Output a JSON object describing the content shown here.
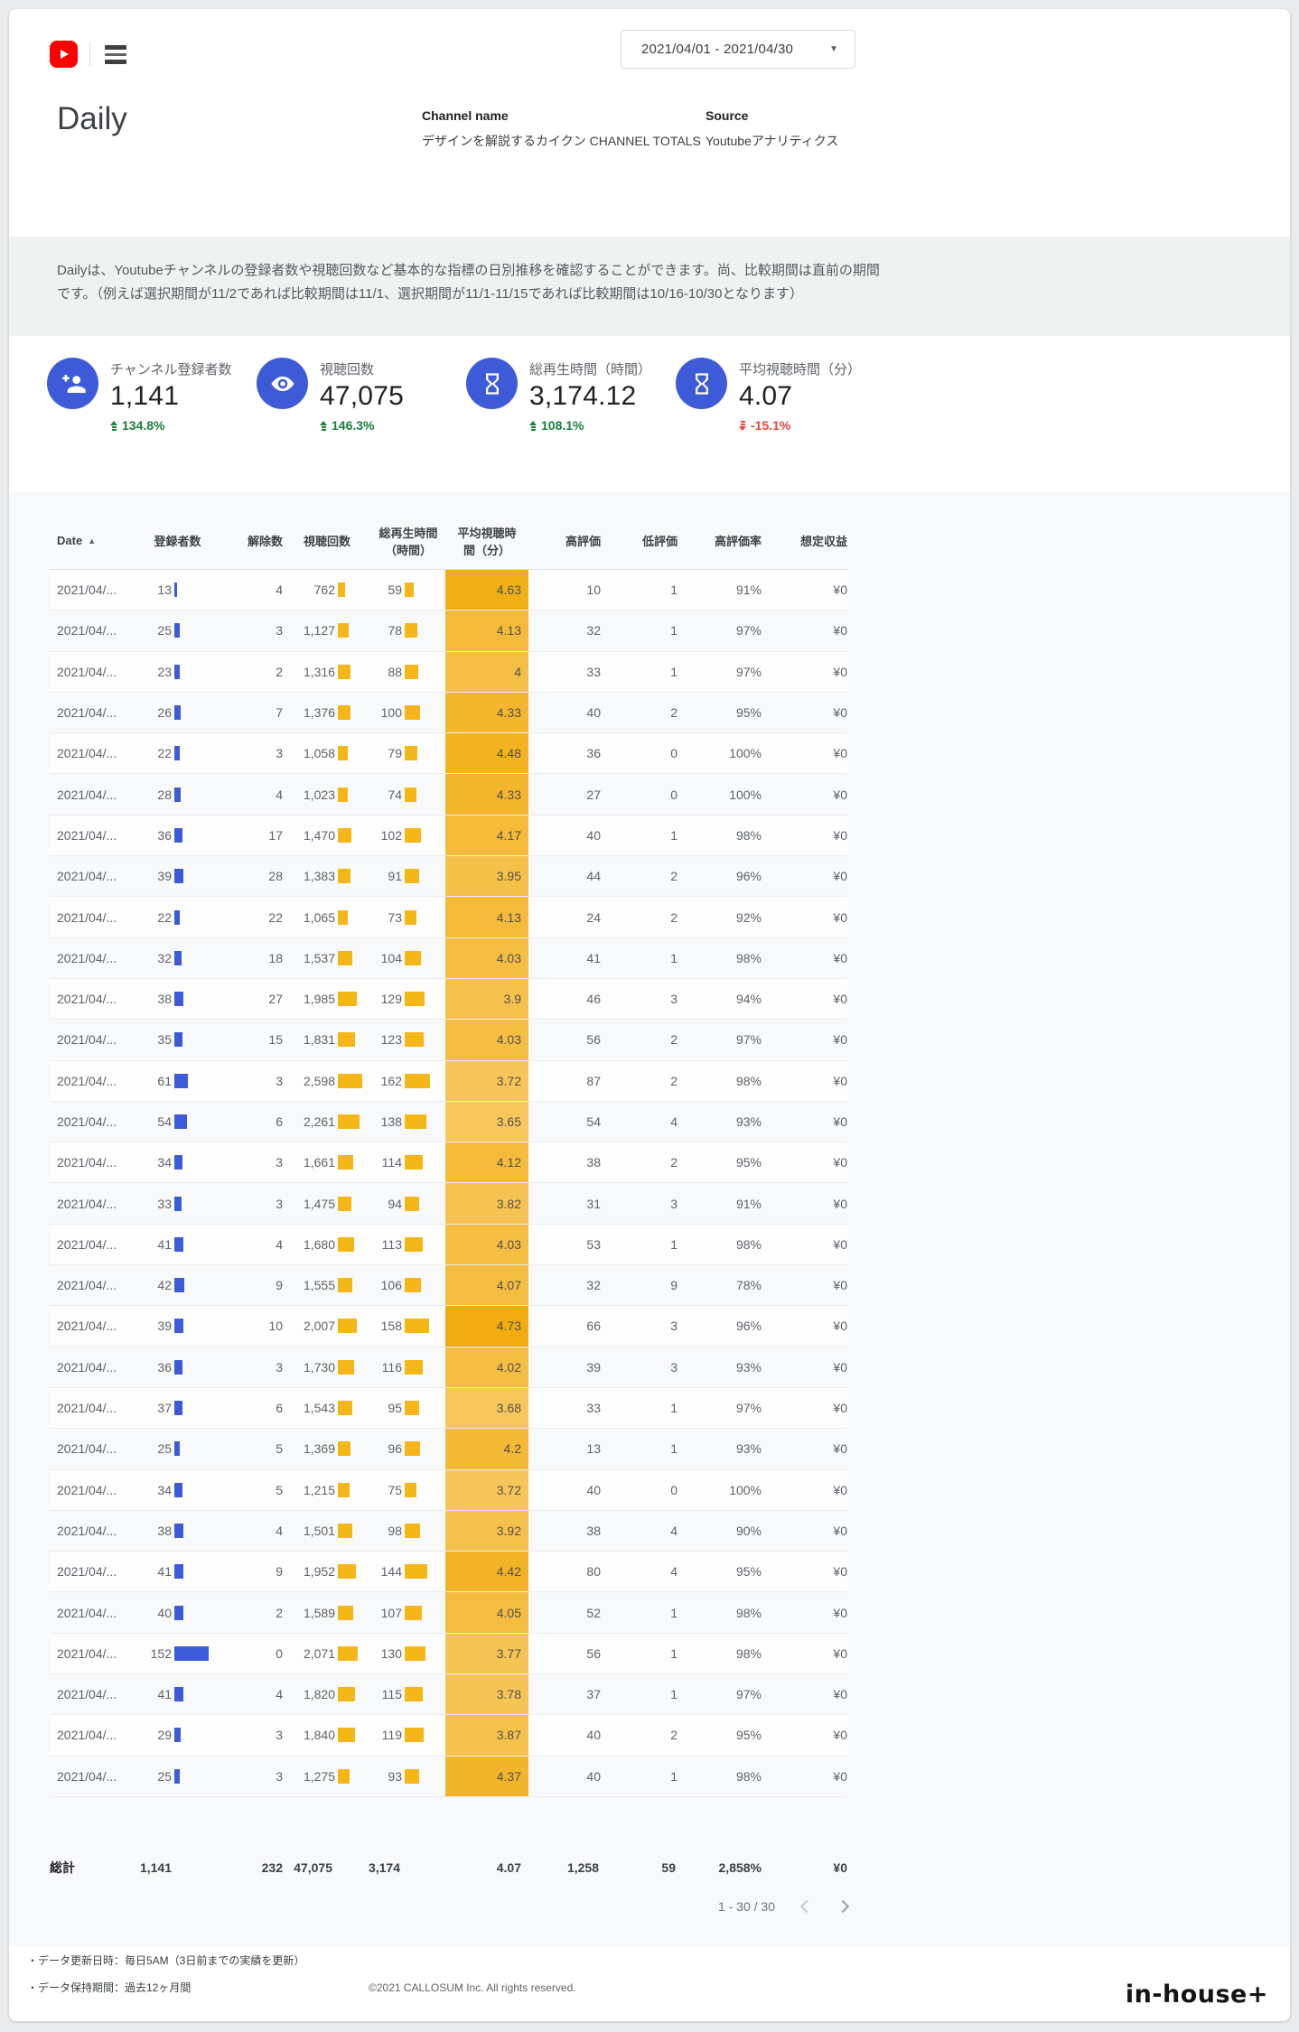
{
  "header": {
    "title": "Daily",
    "date_range": "2021/04/01 - 2021/04/30",
    "channel_label": "Channel name",
    "channel_value": "デザインを解説するカイクン CHANNEL TOTALS",
    "source_label": "Source",
    "source_value": "Youtubeアナリティクス"
  },
  "description": "Dailyは、Youtubeチャンネルの登録者数や視聴回数など基本的な指標の日別推移を確認することができます。尚、比較期間は直前の期間です。（例えば選択期間が11/2であれば比較期間は11/1、選択期間が11/1-11/15であれば比較期間は10/16-10/30となります）",
  "kpis": [
    {
      "icon": "person-add-icon",
      "label": "チャンネル登録者数",
      "value": "1,141",
      "delta": "134.8%",
      "direction": "up"
    },
    {
      "icon": "eye-icon",
      "label": "視聴回数",
      "value": "47,075",
      "delta": "146.3%",
      "direction": "up"
    },
    {
      "icon": "hourglass-icon",
      "label": "総再生時間（時間）",
      "value": "3,174.12",
      "delta": "108.1%",
      "direction": "up"
    },
    {
      "icon": "hourglass-icon",
      "label": "平均視聴時間（分）",
      "value": "4.07",
      "delta": "-15.1%",
      "direction": "down"
    }
  ],
  "colors": {
    "accent_blue": "#3D5BD9",
    "bar_yellow": "#F5B718",
    "heat_low": "#F7C75E",
    "heat_high": "#F0AC10",
    "delta_up": "#188038",
    "delta_down": "#E8463C",
    "youtube_red": "#FF0000"
  },
  "table": {
    "columns": [
      "Date",
      "登録者数",
      "解除数",
      "視聴回数",
      "総再生時間（時間）",
      "平均視聴時間（分）",
      "高評価",
      "低評価",
      "高評価率",
      "想定収益"
    ],
    "sort": {
      "column": "Date",
      "direction": "asc"
    },
    "rows": [
      [
        "2021/04/...",
        "13",
        "4",
        "762",
        "59",
        "4.63",
        "10",
        "1",
        "91%",
        "¥0"
      ],
      [
        "2021/04/...",
        "25",
        "3",
        "1,127",
        "78",
        "4.13",
        "32",
        "1",
        "97%",
        "¥0"
      ],
      [
        "2021/04/...",
        "23",
        "2",
        "1,316",
        "88",
        "4",
        "33",
        "1",
        "97%",
        "¥0"
      ],
      [
        "2021/04/...",
        "26",
        "7",
        "1,376",
        "100",
        "4.33",
        "40",
        "2",
        "95%",
        "¥0"
      ],
      [
        "2021/04/...",
        "22",
        "3",
        "1,058",
        "79",
        "4.48",
        "36",
        "0",
        "100%",
        "¥0"
      ],
      [
        "2021/04/...",
        "28",
        "4",
        "1,023",
        "74",
        "4.33",
        "27",
        "0",
        "100%",
        "¥0"
      ],
      [
        "2021/04/...",
        "36",
        "17",
        "1,470",
        "102",
        "4.17",
        "40",
        "1",
        "98%",
        "¥0"
      ],
      [
        "2021/04/...",
        "39",
        "28",
        "1,383",
        "91",
        "3.95",
        "44",
        "2",
        "96%",
        "¥0"
      ],
      [
        "2021/04/...",
        "22",
        "22",
        "1,065",
        "73",
        "4.13",
        "24",
        "2",
        "92%",
        "¥0"
      ],
      [
        "2021/04/...",
        "32",
        "18",
        "1,537",
        "104",
        "4.03",
        "41",
        "1",
        "98%",
        "¥0"
      ],
      [
        "2021/04/...",
        "38",
        "27",
        "1,985",
        "129",
        "3.9",
        "46",
        "3",
        "94%",
        "¥0"
      ],
      [
        "2021/04/...",
        "35",
        "15",
        "1,831",
        "123",
        "4.03",
        "56",
        "2",
        "97%",
        "¥0"
      ],
      [
        "2021/04/...",
        "61",
        "3",
        "2,598",
        "162",
        "3.72",
        "87",
        "2",
        "98%",
        "¥0"
      ],
      [
        "2021/04/...",
        "54",
        "6",
        "2,261",
        "138",
        "3.65",
        "54",
        "4",
        "93%",
        "¥0"
      ],
      [
        "2021/04/...",
        "34",
        "3",
        "1,661",
        "114",
        "4.12",
        "38",
        "2",
        "95%",
        "¥0"
      ],
      [
        "2021/04/...",
        "33",
        "3",
        "1,475",
        "94",
        "3.82",
        "31",
        "3",
        "91%",
        "¥0"
      ],
      [
        "2021/04/...",
        "41",
        "4",
        "1,680",
        "113",
        "4.03",
        "53",
        "1",
        "98%",
        "¥0"
      ],
      [
        "2021/04/...",
        "42",
        "9",
        "1,555",
        "106",
        "4.07",
        "32",
        "9",
        "78%",
        "¥0"
      ],
      [
        "2021/04/...",
        "39",
        "10",
        "2,007",
        "158",
        "4.73",
        "66",
        "3",
        "96%",
        "¥0"
      ],
      [
        "2021/04/...",
        "36",
        "3",
        "1,730",
        "116",
        "4.02",
        "39",
        "3",
        "93%",
        "¥0"
      ],
      [
        "2021/04/...",
        "37",
        "6",
        "1,543",
        "95",
        "3.68",
        "33",
        "1",
        "97%",
        "¥0"
      ],
      [
        "2021/04/...",
        "25",
        "5",
        "1,369",
        "96",
        "4.2",
        "13",
        "1",
        "93%",
        "¥0"
      ],
      [
        "2021/04/...",
        "34",
        "5",
        "1,215",
        "75",
        "3.72",
        "40",
        "0",
        "100%",
        "¥0"
      ],
      [
        "2021/04/...",
        "38",
        "4",
        "1,501",
        "98",
        "3.92",
        "38",
        "4",
        "90%",
        "¥0"
      ],
      [
        "2021/04/...",
        "41",
        "9",
        "1,952",
        "144",
        "4.42",
        "80",
        "4",
        "95%",
        "¥0"
      ],
      [
        "2021/04/...",
        "40",
        "2",
        "1,589",
        "107",
        "4.05",
        "52",
        "1",
        "98%",
        "¥0"
      ],
      [
        "2021/04/...",
        "152",
        "0",
        "2,071",
        "130",
        "3.77",
        "56",
        "1",
        "98%",
        "¥0"
      ],
      [
        "2021/04/...",
        "41",
        "4",
        "1,820",
        "115",
        "3.78",
        "37",
        "1",
        "97%",
        "¥0"
      ],
      [
        "2021/04/...",
        "29",
        "3",
        "1,840",
        "119",
        "3.87",
        "40",
        "2",
        "95%",
        "¥0"
      ],
      [
        "2021/04/...",
        "25",
        "3",
        "1,275",
        "93",
        "4.37",
        "40",
        "1",
        "98%",
        "¥0"
      ]
    ],
    "totals": [
      "総計",
      "1,141",
      "232",
      "47,075",
      "3,174",
      "4.07",
      "1,258",
      "59",
      "2,858%",
      "¥0"
    ],
    "pagination": "1 - 30 / 30"
  },
  "footer": {
    "notes": [
      "・データ更新日時：毎日5AM（3日前までの実績を更新）",
      "・データ保持期間：過去12ヶ月間"
    ],
    "copyright": "©2021 CALLOSUM Inc. All rights reserved.",
    "brand": "in-house+"
  }
}
